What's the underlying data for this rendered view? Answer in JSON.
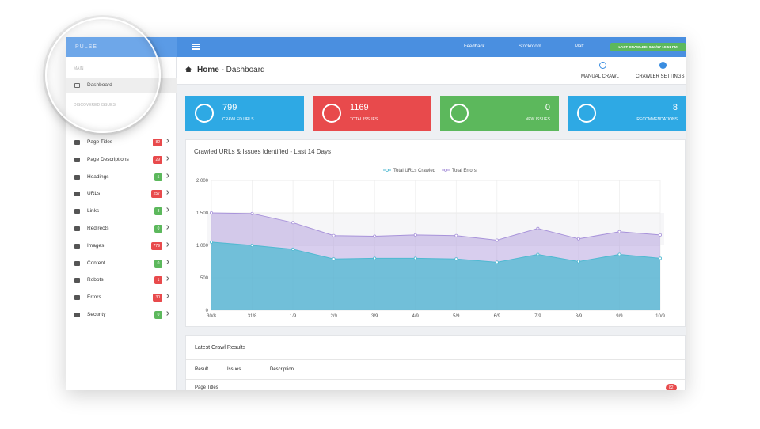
{
  "topbar": {
    "brand": "PULSE",
    "menu": [
      "Feedback",
      "Stockroom",
      "Matt"
    ],
    "last_crawled": "LAST CRAWLED: 9/10/17 10:51 PM"
  },
  "sidebar": {
    "main_heading": "MAIN",
    "main_item": "Dashboard",
    "issues_heading": "DISCOVERED ISSUES",
    "items": [
      {
        "label": "Page Titles",
        "count": 82,
        "status": "bad"
      },
      {
        "label": "Page Descriptions",
        "count": 29,
        "status": "bad"
      },
      {
        "label": "Headings",
        "count": 5,
        "status": "good"
      },
      {
        "label": "URLs",
        "count": 257,
        "status": "bad"
      },
      {
        "label": "Links",
        "count": 8,
        "status": "good"
      },
      {
        "label": "Redirects",
        "count": 0,
        "status": "good"
      },
      {
        "label": "Images",
        "count": 779,
        "status": "bad"
      },
      {
        "label": "Content",
        "count": 0,
        "status": "good"
      },
      {
        "label": "Robots",
        "count": 1,
        "status": "bad"
      },
      {
        "label": "Errors",
        "count": 30,
        "status": "bad"
      },
      {
        "label": "Security",
        "count": 0,
        "status": "good"
      }
    ]
  },
  "header": {
    "title": "Home",
    "subtitle": "- Dashboard",
    "actions": [
      "MANUAL CRAWL",
      "CRAWLER SETTINGS"
    ]
  },
  "cards": [
    {
      "value": 799,
      "label": "CRAWLED URLS",
      "color": "#2ea9e4"
    },
    {
      "value": 1169,
      "label": "TOTAL ISSUES",
      "color": "#e84a4c"
    },
    {
      "value": 0,
      "label": "NEW ISSUES",
      "color": "#5cb85c"
    },
    {
      "value": 8,
      "label": "RECOMMENDATIONS",
      "color": "#2ea9e4"
    }
  ],
  "chart_data": {
    "type": "area",
    "title": "Crawled URLs & Issues Identified - Last 14 Days",
    "categories": [
      "30/8",
      "31/8",
      "1/9",
      "2/9",
      "3/9",
      "4/9",
      "5/9",
      "6/9",
      "7/9",
      "8/9",
      "9/9",
      "10/9"
    ],
    "series": [
      {
        "name": "Total URLs Crawled",
        "color": "#4fb9d1",
        "values": [
          1050,
          1000,
          940,
          790,
          800,
          800,
          790,
          740,
          860,
          750,
          860,
          800
        ]
      },
      {
        "name": "Total Errors",
        "color": "#a893da",
        "values": [
          1500,
          1490,
          1350,
          1150,
          1140,
          1160,
          1150,
          1080,
          1260,
          1100,
          1210,
          1160
        ]
      }
    ],
    "ylim": [
      0,
      2000
    ],
    "yticks": [
      0,
      500,
      {
        "value": 1000,
        "label": "1,000"
      },
      {
        "value": 1500,
        "label": "1,500"
      },
      {
        "value": 2000,
        "label": "2,000"
      }
    ],
    "grid": true,
    "legend": "top"
  },
  "results": {
    "title": "Latest Crawl Results",
    "columns": [
      "Result",
      "Issues",
      "Description"
    ],
    "rows": [
      {
        "result": "Page Titles",
        "badge": "82"
      }
    ]
  }
}
